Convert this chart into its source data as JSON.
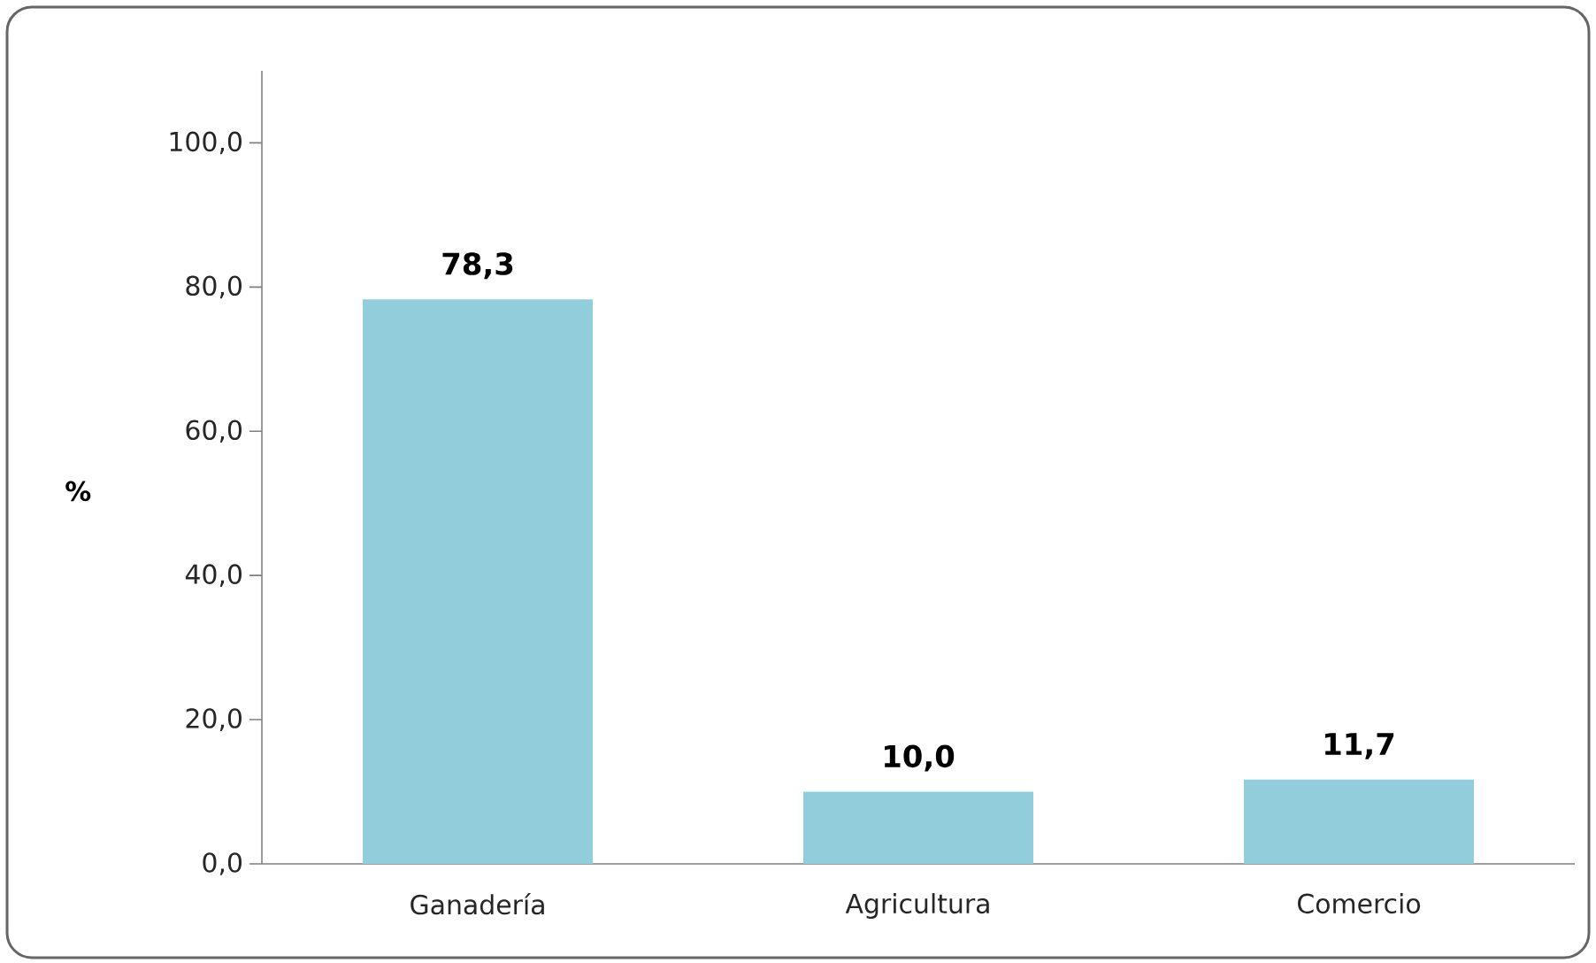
{
  "chart_data": {
    "type": "bar",
    "ylabel": "%",
    "categories": [
      "Ganadería",
      "Agricultura",
      "Comercio"
    ],
    "values": [
      78.3,
      10.0,
      11.7
    ],
    "value_labels": [
      "78,3",
      "10,0",
      "11,7"
    ],
    "color": "#92cddc",
    "ylim": [
      0,
      110
    ],
    "yticks": [
      {
        "value": 0,
        "label": "0,0"
      },
      {
        "value": 20,
        "label": "20,0"
      },
      {
        "value": 40,
        "label": "40,0"
      },
      {
        "value": 60,
        "label": "60,0"
      },
      {
        "value": 80,
        "label": "80,0"
      },
      {
        "value": 100,
        "label": "100,0"
      }
    ]
  }
}
